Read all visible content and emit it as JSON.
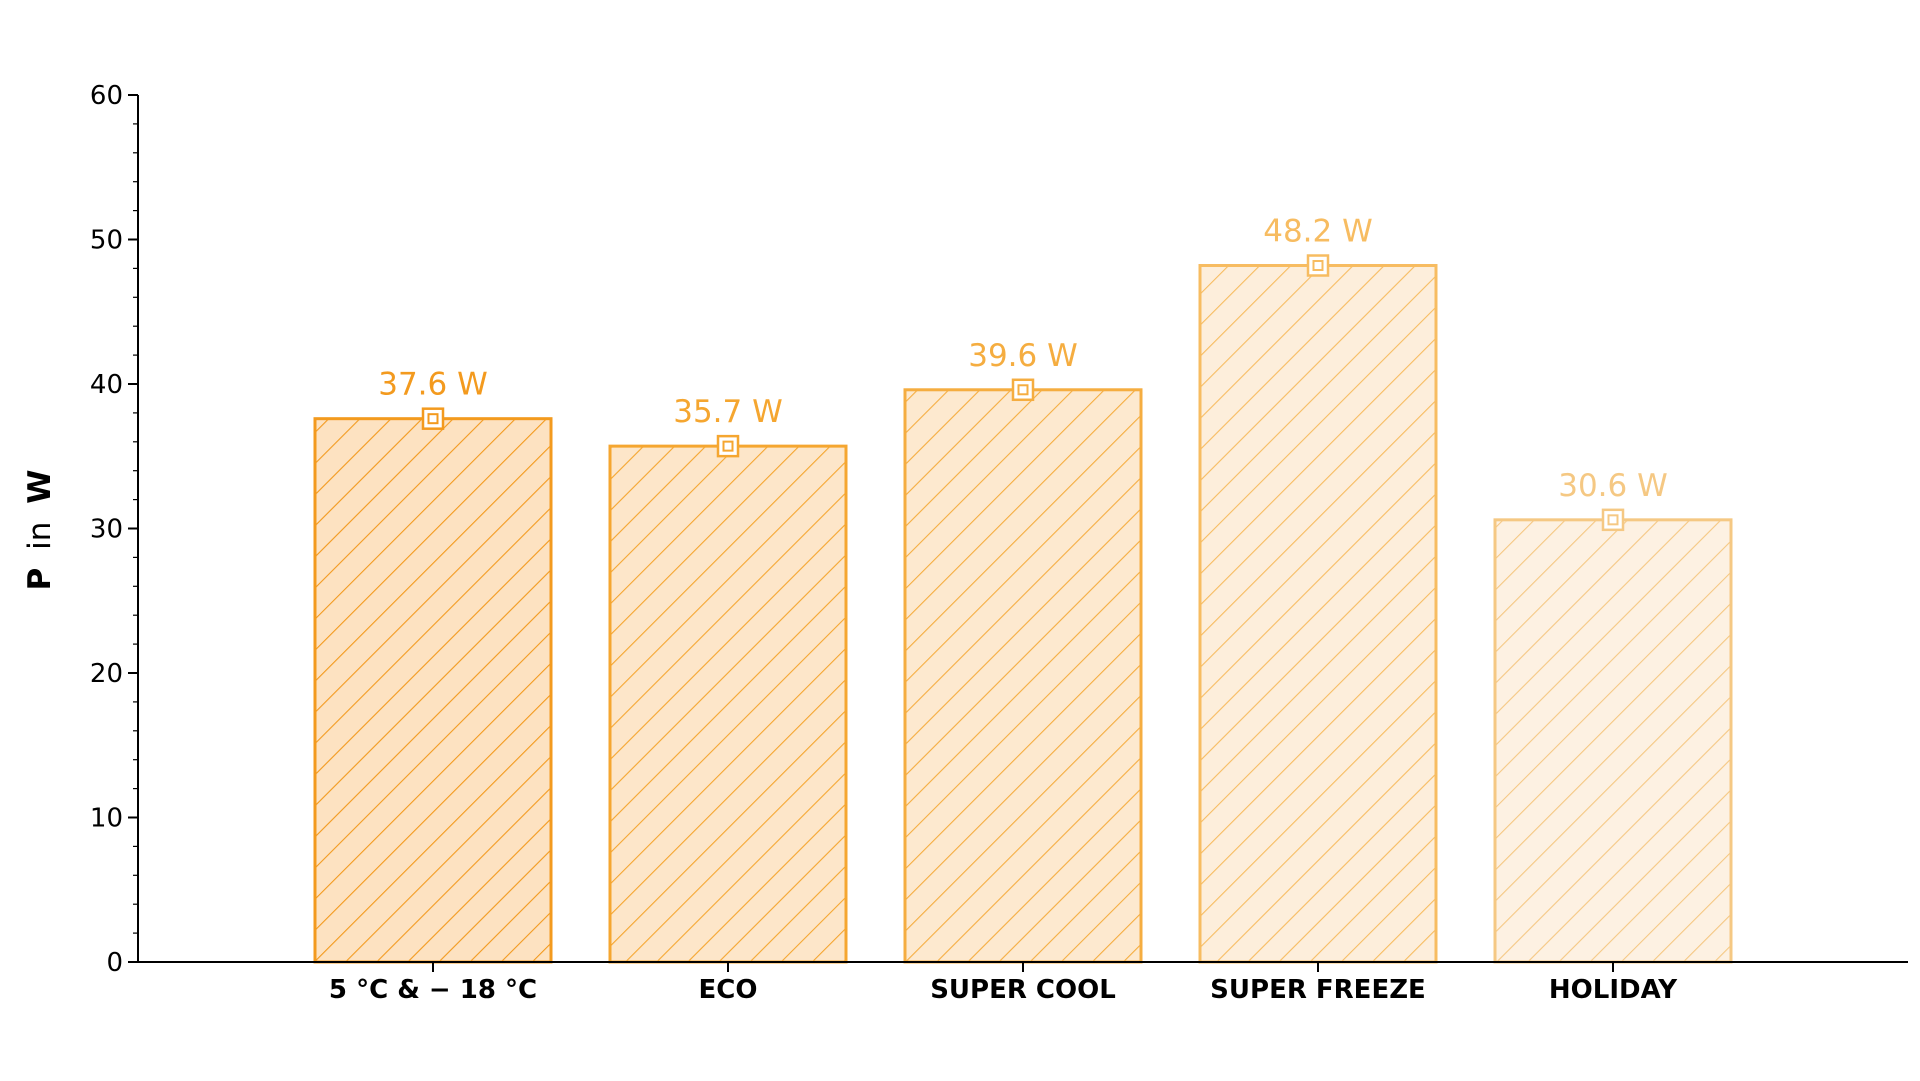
{
  "chart_data": {
    "type": "bar",
    "title": "",
    "xlabel": "",
    "ylabel": "P in W",
    "ylabel_parts": {
      "symbol": "P",
      "connector": "in",
      "unit": "W"
    },
    "ylim": [
      0,
      60
    ],
    "yticks": [
      "0",
      "10",
      "20",
      "30",
      "40",
      "50",
      "60"
    ],
    "grid": false,
    "categories": [
      "5 °C & − 18 °C",
      "ECO",
      "SUPER COOL",
      "SUPER FREEZE",
      "HOLIDAY"
    ],
    "values": [
      37.6,
      35.7,
      39.6,
      48.2,
      30.6
    ],
    "value_labels": [
      "37.6 W",
      "35.7 W",
      "39.6 W",
      "48.2 W",
      "30.6 W"
    ],
    "colors": {
      "stroke": [
        "#f39a1e",
        "#f5a630",
        "#f5ad40",
        "#f7bc61",
        "#f5c883"
      ],
      "fill": [
        "#fde2c1",
        "#fde6c9",
        "#fde9cf",
        "#fdeedb",
        "#fdf1e2"
      ],
      "axis": "#000000"
    }
  }
}
